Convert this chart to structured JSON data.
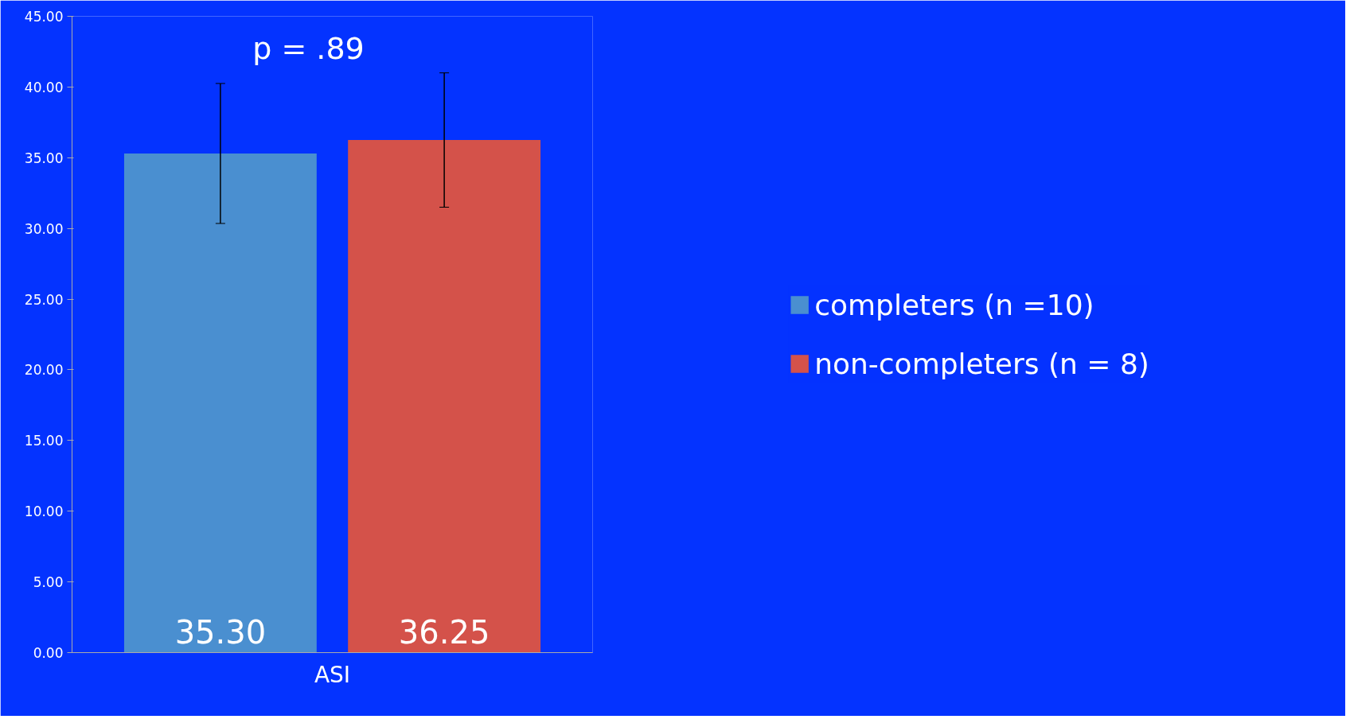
{
  "chart_data": {
    "type": "bar",
    "categories": [
      "ASI"
    ],
    "series": [
      {
        "name": "completers (n =10)",
        "color": "#4a8fd0",
        "values": [
          35.3
        ],
        "errors": [
          4.95
        ],
        "value_labels": [
          "35.30"
        ]
      },
      {
        "name": "non-completers (n = 8)",
        "color": "#d4524a",
        "values": [
          36.25
        ],
        "errors": [
          4.75
        ],
        "value_labels": [
          "36.25"
        ]
      }
    ],
    "ylim": [
      0,
      45
    ],
    "yticks": [
      {
        "value": 0,
        "label": "0.00"
      },
      {
        "value": 5,
        "label": "5.00"
      },
      {
        "value": 10,
        "label": "10.00"
      },
      {
        "value": 15,
        "label": "15.00"
      },
      {
        "value": 20,
        "label": "20.00"
      },
      {
        "value": 25,
        "label": "25.00"
      },
      {
        "value": 30,
        "label": "30.00"
      },
      {
        "value": 35,
        "label": "35.00"
      },
      {
        "value": 40,
        "label": "40.00"
      },
      {
        "value": 45,
        "label": "45.00"
      }
    ],
    "annotations": [
      "p = .89"
    ],
    "grid": false,
    "legend": "right"
  }
}
